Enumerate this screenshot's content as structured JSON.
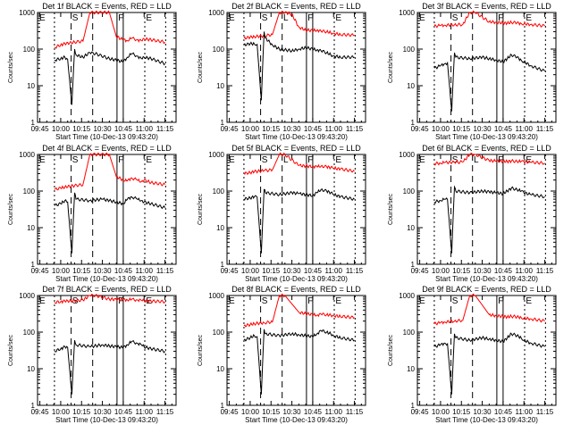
{
  "figure": {
    "grid_rows": 3,
    "grid_cols": 3,
    "colors": {
      "events": "#000000",
      "lld": "#ff0000",
      "axes": "#000000",
      "background": "#ffffff"
    }
  },
  "chart_data": [
    {
      "type": "line",
      "title": "Det 1f BLACK = Events, RED = LLD",
      "xlabel": "Start Time (10-Dec-13 09:43:20)",
      "ylabel": "Counts/sec",
      "y_scale": "log",
      "ylim": [
        1,
        1000
      ],
      "x_tick_labels": [
        "09:45",
        "10:00",
        "10:15",
        "10:30",
        "10:45",
        "11:00",
        "11:15"
      ],
      "y_tick_labels": [
        "1",
        "10",
        "100",
        "1000"
      ],
      "markers": [
        "E",
        "S",
        "F",
        "E"
      ],
      "series": [
        {
          "name": "LLD",
          "color": "#ff0000",
          "x_min": [
            10.5,
            15,
            18,
            25,
            31,
            36,
            40,
            50,
            55,
            60,
            63,
            66,
            70,
            73,
            75,
            80,
            90
          ],
          "y": [
            110,
            130,
            140,
            155,
            165,
            1000,
            1000,
            1000,
            220,
            180,
            170,
            200,
            180,
            170,
            190,
            180,
            155
          ]
        },
        {
          "name": "Events",
          "color": "#000000",
          "x_min": [
            10.5,
            15,
            18,
            20,
            23,
            25,
            26,
            31,
            36,
            40,
            50,
            55,
            60,
            63,
            66,
            70,
            73,
            75,
            80,
            90
          ],
          "y": [
            50,
            55,
            60,
            52,
            3,
            100,
            70,
            60,
            80,
            75,
            55,
            50,
            45,
            60,
            75,
            65,
            55,
            60,
            55,
            40
          ]
        }
      ]
    },
    {
      "type": "line",
      "title": "Det 2f BLACK = Events, RED = LLD",
      "xlabel": "Start Time (10-Dec-13 09:43:20)",
      "ylabel": "Counts/sec",
      "y_scale": "log",
      "ylim": [
        1,
        1000
      ],
      "x_tick_labels": [
        "09:45",
        "10:00",
        "10:15",
        "10:30",
        "10:45",
        "11:00",
        "11:15"
      ],
      "y_tick_labels": [
        "1",
        "10",
        "100",
        "1000"
      ],
      "markers": [
        "E",
        "S",
        "L",
        "F",
        "E"
      ],
      "series": [
        {
          "name": "LLD",
          "color": "#ff0000",
          "x_min": [
            10.5,
            15,
            18,
            25,
            31,
            36,
            40,
            45,
            50,
            55,
            60,
            63,
            66,
            70,
            73,
            75,
            80,
            90
          ],
          "y": [
            200,
            210,
            220,
            230,
            250,
            1000,
            1000,
            900,
            400,
            330,
            320,
            330,
            310,
            300,
            280,
            270,
            250,
            240
          ]
        },
        {
          "name": "Events",
          "color": "#000000",
          "x_min": [
            10.5,
            15,
            18,
            20,
            23,
            25,
            26,
            31,
            36,
            45,
            50,
            55,
            60,
            63,
            66,
            70,
            73,
            75,
            80,
            90
          ],
          "y": [
            130,
            140,
            140,
            135,
            4,
            300,
            200,
            130,
            100,
            90,
            100,
            110,
            100,
            95,
            90,
            80,
            70,
            65,
            60,
            60
          ]
        }
      ]
    },
    {
      "type": "line",
      "title": "Det 3f BLACK = Events, RED = LLD",
      "xlabel": "Start Time (10-Dec-13 09:43:20)",
      "ylabel": "Counts/sec",
      "y_scale": "log",
      "ylim": [
        1,
        1000
      ],
      "x_tick_labels": [
        "09:45",
        "10:00",
        "10:15",
        "10:30",
        "10:45",
        "11:00",
        "11:15"
      ],
      "y_tick_labels": [
        "1",
        "10",
        "100",
        "1000"
      ],
      "markers": [
        "E",
        "S",
        "F",
        "E"
      ],
      "series": [
        {
          "name": "LLD",
          "color": "#ff0000",
          "x_min": [
            10.5,
            15,
            18,
            25,
            31,
            36,
            40,
            50,
            55,
            60,
            63,
            66,
            70,
            73,
            75,
            80,
            90
          ],
          "y": [
            420,
            440,
            450,
            460,
            470,
            1000,
            1000,
            560,
            540,
            520,
            510,
            540,
            520,
            500,
            490,
            470,
            430
          ]
        },
        {
          "name": "Events",
          "color": "#000000",
          "x_min": [
            10.5,
            15,
            18,
            20,
            23,
            25,
            26,
            36,
            45,
            50,
            55,
            60,
            63,
            66,
            70,
            73,
            75,
            80,
            90
          ],
          "y": [
            30,
            35,
            40,
            42,
            2,
            80,
            60,
            55,
            60,
            55,
            50,
            45,
            55,
            70,
            60,
            50,
            45,
            35,
            25
          ]
        }
      ]
    },
    {
      "type": "line",
      "title": "Det 4f BLACK = Events, RED = LLD",
      "xlabel": "Start Time (10-Dec-13 09:43:20)",
      "ylabel": "Counts/sec",
      "y_scale": "log",
      "ylim": [
        1,
        1000
      ],
      "x_tick_labels": [
        "09:45",
        "10:00",
        "10:15",
        "10:30",
        "10:45",
        "11:00",
        "11:15"
      ],
      "y_tick_labels": [
        "1",
        "10",
        "100",
        "1000"
      ],
      "markers": [
        "E",
        "S",
        "F",
        "E"
      ],
      "series": [
        {
          "name": "LLD",
          "color": "#ff0000",
          "x_min": [
            10.5,
            15,
            18,
            25,
            31,
            36,
            40,
            50,
            55,
            60,
            63,
            66,
            70,
            73,
            75,
            80,
            90
          ],
          "y": [
            110,
            120,
            130,
            140,
            150,
            1000,
            1000,
            1000,
            250,
            200,
            190,
            230,
            200,
            180,
            200,
            170,
            150
          ]
        },
        {
          "name": "Events",
          "color": "#000000",
          "x_min": [
            10.5,
            15,
            18,
            20,
            23,
            25,
            26,
            36,
            45,
            50,
            55,
            60,
            63,
            66,
            70,
            73,
            75,
            80,
            90
          ],
          "y": [
            40,
            45,
            55,
            50,
            2,
            90,
            60,
            55,
            60,
            55,
            50,
            45,
            60,
            70,
            60,
            55,
            50,
            45,
            35
          ]
        }
      ]
    },
    {
      "type": "line",
      "title": "Det 5f BLACK = Events, RED = LLD",
      "xlabel": "Start Time (10-Dec-13 09:43:20)",
      "ylabel": "Counts/sec",
      "y_scale": "log",
      "ylim": [
        1,
        1000
      ],
      "x_tick_labels": [
        "09:45",
        "10:00",
        "10:15",
        "10:30",
        "10:45",
        "11:00",
        "11:15"
      ],
      "y_tick_labels": [
        "1",
        "10",
        "100",
        "1000"
      ],
      "markers": [
        "E",
        "S",
        "L",
        "F",
        "E"
      ],
      "series": [
        {
          "name": "LLD",
          "color": "#ff0000",
          "x_min": [
            10.5,
            15,
            18,
            25,
            31,
            36,
            40,
            50,
            55,
            60,
            63,
            66,
            70,
            73,
            75,
            80,
            90
          ],
          "y": [
            300,
            320,
            340,
            360,
            380,
            1000,
            1000,
            500,
            480,
            470,
            460,
            480,
            460,
            440,
            420,
            400,
            350
          ]
        },
        {
          "name": "Events",
          "color": "#000000",
          "x_min": [
            10.5,
            15,
            18,
            20,
            23,
            25,
            26,
            36,
            45,
            50,
            55,
            60,
            63,
            66,
            70,
            73,
            75,
            80,
            90
          ],
          "y": [
            60,
            65,
            70,
            68,
            2,
            110,
            90,
            80,
            90,
            85,
            80,
            75,
            90,
            110,
            100,
            90,
            80,
            70,
            60
          ]
        }
      ]
    },
    {
      "type": "line",
      "title": "Det 6f BLACK = Events, RED = LLD",
      "xlabel": "Start Time (10-Dec-13 09:43:20)",
      "ylabel": "Counts/sec",
      "y_scale": "log",
      "ylim": [
        1,
        1000
      ],
      "x_tick_labels": [
        "09:45",
        "10:00",
        "10:15",
        "10:30",
        "10:45",
        "11:00",
        "11:15"
      ],
      "y_tick_labels": [
        "1",
        "10",
        "100",
        "1000"
      ],
      "markers": [
        "E",
        "S",
        "L",
        "F",
        "E"
      ],
      "series": [
        {
          "name": "LLD",
          "color": "#ff0000",
          "x_min": [
            10.5,
            15,
            18,
            25,
            31,
            36,
            40,
            50,
            55,
            60,
            63,
            66,
            70,
            73,
            75,
            80,
            90
          ],
          "y": [
            560,
            580,
            600,
            610,
            620,
            1000,
            1000,
            680,
            660,
            650,
            640,
            660,
            650,
            640,
            630,
            610,
            580
          ]
        },
        {
          "name": "Events",
          "color": "#000000",
          "x_min": [
            10.5,
            15,
            18,
            20,
            23,
            25,
            26,
            36,
            45,
            50,
            55,
            60,
            63,
            66,
            70,
            73,
            75,
            80,
            90
          ],
          "y": [
            50,
            55,
            60,
            58,
            2,
            130,
            100,
            90,
            100,
            95,
            90,
            85,
            100,
            120,
            110,
            100,
            90,
            80,
            70
          ]
        }
      ]
    },
    {
      "type": "line",
      "title": "Det 7f BLACK = Events, RED = LLD",
      "xlabel": "Start Time (10-Dec-13 09:43:20)",
      "ylabel": "Counts/sec",
      "y_scale": "log",
      "ylim": [
        1,
        1000
      ],
      "x_tick_labels": [
        "09:45",
        "10:00",
        "10:15",
        "10:30",
        "10:45",
        "11:00",
        "11:15"
      ],
      "y_tick_labels": [
        "1",
        "10",
        "100",
        "1000"
      ],
      "markers": [
        "E",
        "S",
        "F",
        "E"
      ],
      "series": [
        {
          "name": "LLD",
          "color": "#ff0000",
          "x_min": [
            10.5,
            15,
            18,
            25,
            31,
            36,
            40,
            50,
            55,
            60,
            63,
            66,
            70,
            73,
            75,
            80,
            90
          ],
          "y": [
            650,
            680,
            700,
            720,
            750,
            1000,
            1000,
            800,
            780,
            770,
            760,
            780,
            760,
            740,
            720,
            700,
            680
          ]
        },
        {
          "name": "Events",
          "color": "#000000",
          "x_min": [
            10.5,
            15,
            18,
            20,
            23,
            25,
            26,
            36,
            45,
            50,
            55,
            60,
            63,
            66,
            70,
            73,
            75,
            80,
            90
          ],
          "y": [
            30,
            35,
            40,
            38,
            2,
            60,
            45,
            40,
            45,
            42,
            40,
            38,
            45,
            55,
            50,
            45,
            40,
            35,
            30
          ]
        }
      ]
    },
    {
      "type": "line",
      "title": "Det 8f BLACK = Events, RED = LLD",
      "xlabel": "Start Time (10-Dec-13 09:43:20)",
      "ylabel": "Counts/sec",
      "y_scale": "log",
      "ylim": [
        1,
        1000
      ],
      "x_tick_labels": [
        "09:45",
        "10:00",
        "10:15",
        "10:30",
        "10:45",
        "11:00",
        "11:15"
      ],
      "y_tick_labels": [
        "1",
        "10",
        "100",
        "1000"
      ],
      "markers": [
        "E",
        "S",
        "F",
        "E"
      ],
      "series": [
        {
          "name": "LLD",
          "color": "#ff0000",
          "x_min": [
            10.5,
            15,
            18,
            25,
            31,
            36,
            40,
            50,
            55,
            60,
            63,
            66,
            70,
            73,
            75,
            80,
            90
          ],
          "y": [
            150,
            160,
            170,
            180,
            190,
            1000,
            1000,
            350,
            320,
            300,
            290,
            310,
            300,
            290,
            280,
            270,
            250
          ]
        },
        {
          "name": "Events",
          "color": "#000000",
          "x_min": [
            10.5,
            15,
            18,
            20,
            23,
            25,
            26,
            36,
            45,
            50,
            55,
            60,
            63,
            66,
            70,
            73,
            75,
            80,
            90
          ],
          "y": [
            60,
            70,
            80,
            75,
            2,
            120,
            90,
            80,
            90,
            85,
            80,
            75,
            90,
            110,
            100,
            90,
            80,
            70,
            60
          ]
        }
      ]
    },
    {
      "type": "line",
      "title": "Det 9f BLACK = Events, RED = LLD",
      "xlabel": "Start Time (10-Dec-13 09:43:20)",
      "ylabel": "Counts/sec",
      "y_scale": "log",
      "ylim": [
        1,
        1000
      ],
      "x_tick_labels": [
        "09:45",
        "10:00",
        "10:15",
        "10:30",
        "10:45",
        "11:00",
        "11:15"
      ],
      "y_tick_labels": [
        "1",
        "10",
        "100",
        "1000"
      ],
      "markers": [
        "E",
        "S",
        "F",
        "E"
      ],
      "series": [
        {
          "name": "LLD",
          "color": "#ff0000",
          "x_min": [
            10.5,
            15,
            18,
            25,
            31,
            36,
            40,
            50,
            55,
            60,
            63,
            66,
            70,
            73,
            75,
            80,
            90
          ],
          "y": [
            170,
            180,
            190,
            200,
            210,
            1000,
            1000,
            300,
            280,
            270,
            260,
            270,
            260,
            250,
            240,
            230,
            200
          ]
        },
        {
          "name": "Events",
          "color": "#000000",
          "x_min": [
            10.5,
            15,
            18,
            20,
            23,
            25,
            26,
            36,
            45,
            50,
            55,
            60,
            63,
            66,
            70,
            73,
            75,
            80,
            90
          ],
          "y": [
            40,
            45,
            50,
            48,
            2,
            90,
            70,
            60,
            70,
            65,
            60,
            55,
            70,
            90,
            80,
            70,
            60,
            50,
            40
          ]
        }
      ]
    }
  ]
}
